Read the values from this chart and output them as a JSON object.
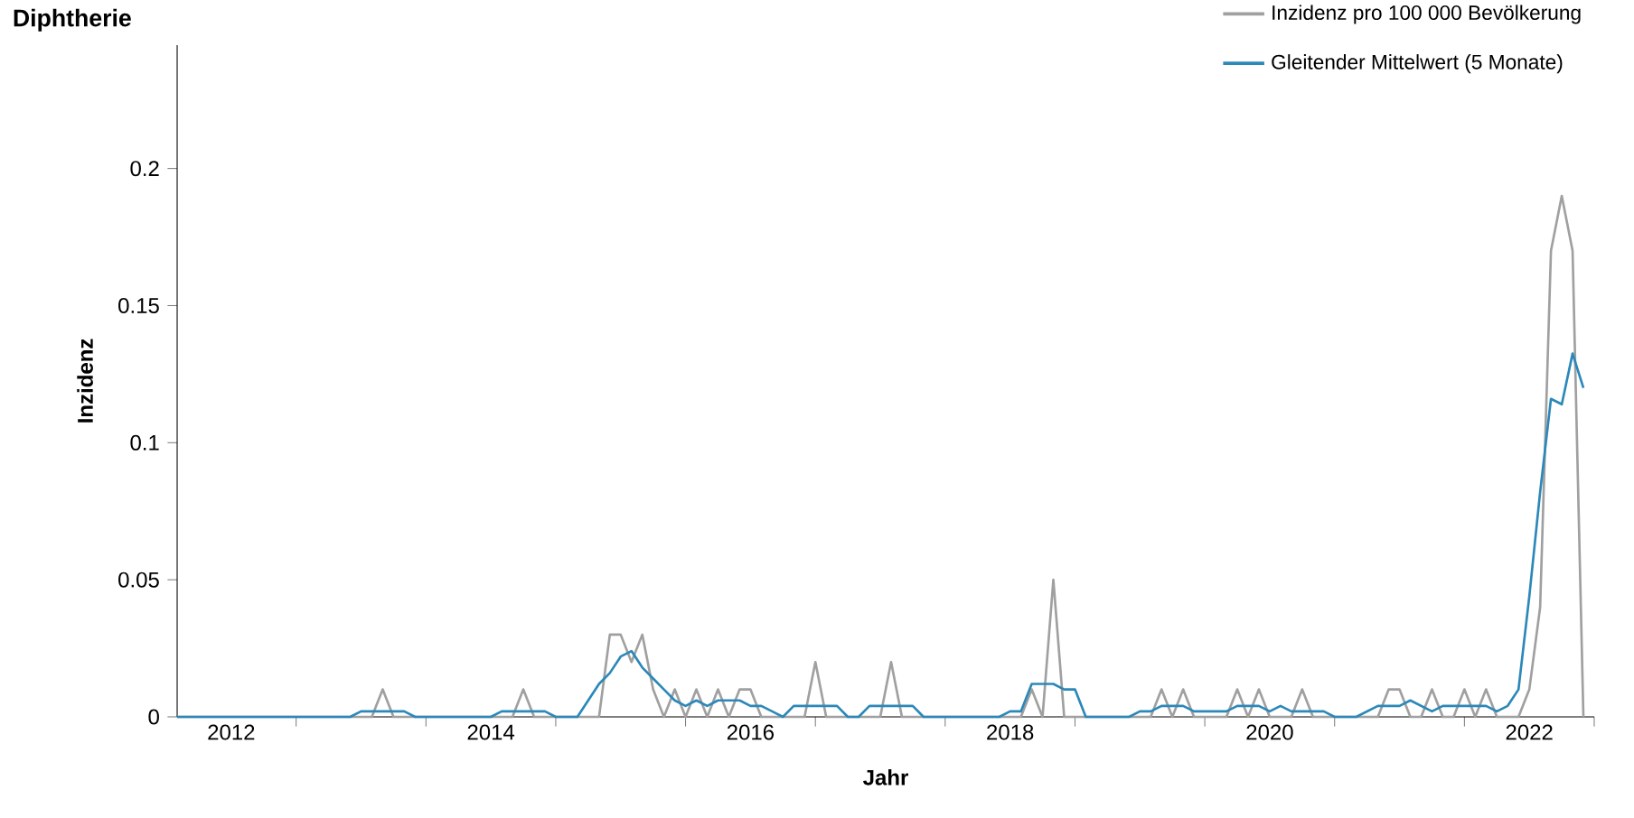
{
  "chart_data": {
    "type": "line",
    "title": "Diphtherie",
    "xlabel": "Jahr",
    "ylabel": "Inzidenz",
    "x": [
      "2012-02",
      "2012-03",
      "2012-04",
      "2012-05",
      "2012-06",
      "2012-07",
      "2012-08",
      "2012-09",
      "2012-10",
      "2012-11",
      "2012-12",
      "2013-01",
      "2013-02",
      "2013-03",
      "2013-04",
      "2013-05",
      "2013-06",
      "2013-07",
      "2013-08",
      "2013-09",
      "2013-10",
      "2013-11",
      "2013-12",
      "2014-01",
      "2014-02",
      "2014-03",
      "2014-04",
      "2014-05",
      "2014-06",
      "2014-07",
      "2014-08",
      "2014-09",
      "2014-10",
      "2014-11",
      "2014-12",
      "2015-01",
      "2015-02",
      "2015-03",
      "2015-04",
      "2015-05",
      "2015-06",
      "2015-07",
      "2015-08",
      "2015-09",
      "2015-10",
      "2015-11",
      "2015-12",
      "2016-01",
      "2016-02",
      "2016-03",
      "2016-04",
      "2016-05",
      "2016-06",
      "2016-07",
      "2016-08",
      "2016-09",
      "2016-10",
      "2016-11",
      "2016-12",
      "2017-01",
      "2017-02",
      "2017-03",
      "2017-04",
      "2017-05",
      "2017-06",
      "2017-07",
      "2017-08",
      "2017-09",
      "2017-10",
      "2017-11",
      "2017-12",
      "2018-01",
      "2018-02",
      "2018-03",
      "2018-04",
      "2018-05",
      "2018-06",
      "2018-07",
      "2018-08",
      "2018-09",
      "2018-10",
      "2018-11",
      "2018-12",
      "2019-01",
      "2019-02",
      "2019-03",
      "2019-04",
      "2019-05",
      "2019-06",
      "2019-07",
      "2019-08",
      "2019-09",
      "2019-10",
      "2019-11",
      "2019-12",
      "2020-01",
      "2020-02",
      "2020-03",
      "2020-04",
      "2020-05",
      "2020-06",
      "2020-07",
      "2020-08",
      "2020-09",
      "2020-10",
      "2020-11",
      "2020-12",
      "2021-01",
      "2021-02",
      "2021-03",
      "2021-04",
      "2021-05",
      "2021-06",
      "2021-07",
      "2021-08",
      "2021-09",
      "2021-10",
      "2021-11",
      "2021-12",
      "2022-01",
      "2022-02",
      "2022-03",
      "2022-04",
      "2022-05",
      "2022-06",
      "2022-07",
      "2022-08",
      "2022-09",
      "2022-10",
      "2022-11",
      "2022-12"
    ],
    "series": [
      {
        "name": "Inzidenz pro 100 000 Bevölkerung",
        "color": "#a0a0a0",
        "values": [
          0,
          0,
          0,
          0,
          0,
          0,
          0,
          0,
          0,
          0,
          0,
          0,
          0,
          0,
          0,
          0,
          0,
          0,
          0,
          0.01,
          0,
          0,
          0,
          0,
          0,
          0,
          0,
          0,
          0,
          0,
          0,
          0,
          0.01,
          0,
          0,
          0,
          0,
          0,
          0,
          0,
          0.03,
          0.03,
          0.02,
          0.03,
          0.01,
          0,
          0.01,
          0,
          0.01,
          0,
          0.01,
          0,
          0.01,
          0.01,
          0,
          0,
          0,
          0,
          0,
          0.02,
          0,
          0,
          0,
          0,
          0,
          0,
          0.02,
          0,
          0,
          0,
          0,
          0,
          0,
          0,
          0,
          0,
          0,
          0,
          0,
          0.01,
          0,
          0.05,
          0,
          0,
          0,
          0,
          0,
          0,
          0,
          0,
          0,
          0.01,
          0,
          0.01,
          0,
          0,
          0,
          0,
          0.01,
          0,
          0.01,
          0,
          0,
          0,
          0.01,
          0,
          0,
          0,
          0,
          0,
          0,
          0,
          0.01,
          0.01,
          0,
          0,
          0.01,
          0,
          0,
          0.01,
          0,
          0.01,
          0,
          0,
          0,
          0.01,
          0.04,
          0.17,
          0.19,
          0.17,
          0
        ]
      },
      {
        "name": "Gleitender Mittelwert (5 Monate)",
        "color": "#2b88b8",
        "values": [
          0,
          0,
          0,
          0,
          0,
          0,
          0,
          0,
          0,
          0,
          0,
          0,
          0,
          0,
          0,
          0,
          0,
          0.002,
          0.002,
          0.002,
          0.002,
          0.002,
          0,
          0,
          0,
          0,
          0,
          0,
          0,
          0,
          0.002,
          0.002,
          0.002,
          0.002,
          0.002,
          0,
          0,
          0,
          0.006,
          0.012,
          0.016,
          0.022,
          0.024,
          0.018,
          0.014,
          0.01,
          0.006,
          0.004,
          0.006,
          0.004,
          0.006,
          0.006,
          0.006,
          0.004,
          0.004,
          0.002,
          0,
          0.004,
          0.004,
          0.004,
          0.004,
          0.004,
          0,
          0,
          0.004,
          0.004,
          0.004,
          0.004,
          0.004,
          0,
          0,
          0,
          0,
          0,
          0,
          0,
          0,
          0.002,
          0.002,
          0.012,
          0.012,
          0.012,
          0.01,
          0.01,
          0,
          0,
          0,
          0,
          0,
          0.002,
          0.002,
          0.004,
          0.004,
          0.004,
          0.002,
          0.002,
          0.002,
          0.002,
          0.004,
          0.004,
          0.004,
          0.002,
          0.004,
          0.002,
          0.002,
          0.002,
          0.002,
          0,
          0,
          0,
          0.002,
          0.004,
          0.004,
          0.004,
          0.006,
          0.004,
          0.002,
          0.004,
          0.004,
          0.004,
          0.004,
          0.004,
          0.002,
          0.004,
          0.01,
          0.044,
          0.082,
          0.116,
          0.114,
          0.1325,
          0.12
        ]
      }
    ],
    "xlim": [
      "2012-02",
      "2023-01"
    ],
    "xticks": [
      {
        "value": "2012-07",
        "label": "2012"
      },
      {
        "value": "2014-07",
        "label": "2014"
      },
      {
        "value": "2016-07",
        "label": "2016"
      },
      {
        "value": "2018-07",
        "label": "2018"
      },
      {
        "value": "2020-07",
        "label": "2020"
      },
      {
        "value": "2022-07",
        "label": "2022"
      },
      {
        "value": "2013",
        "label": null
      },
      {
        "value": "2014",
        "label": null
      },
      {
        "value": "2015",
        "label": null
      },
      {
        "value": "2016",
        "label": null
      },
      {
        "value": "2017",
        "label": null
      },
      {
        "value": "2018",
        "label": null
      },
      {
        "value": "2019",
        "label": null
      },
      {
        "value": "2020",
        "label": null
      },
      {
        "value": "2021",
        "label": null
      },
      {
        "value": "2022",
        "label": null
      },
      {
        "value": "2023",
        "label": null
      }
    ],
    "ylim": [
      0,
      0.245
    ],
    "yticks": [
      0,
      0.05,
      0.1,
      0.15,
      0.2
    ],
    "grid": false,
    "legend": "top right",
    "marker": "none",
    "line_style": "solid"
  }
}
